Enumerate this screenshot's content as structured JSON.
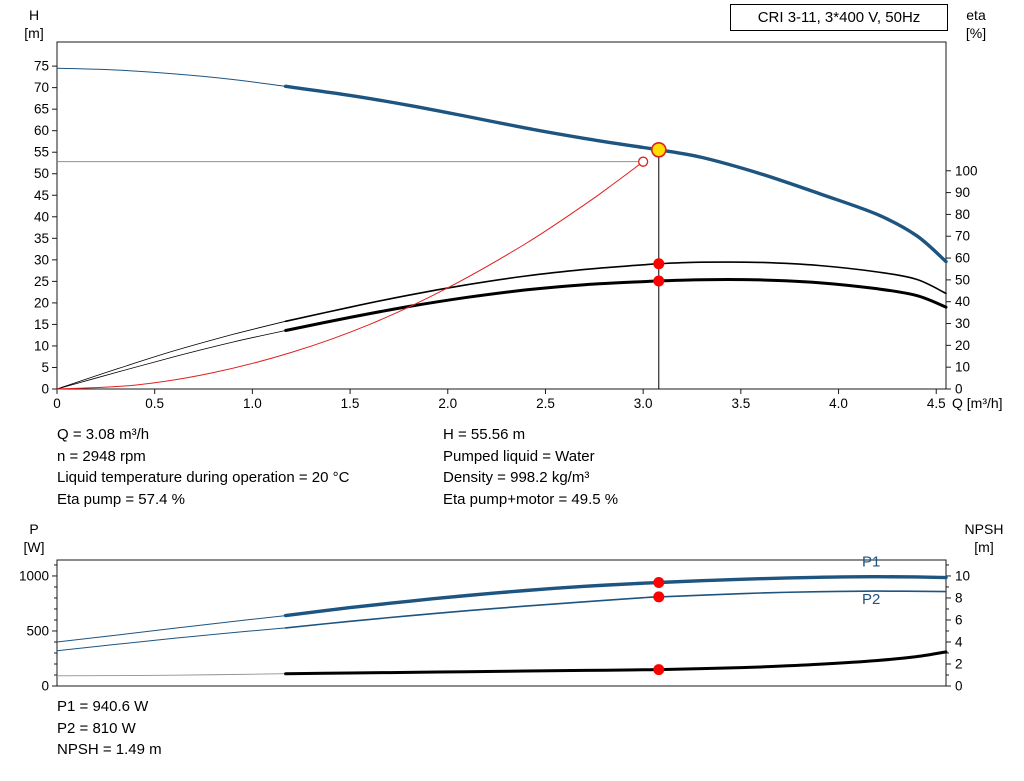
{
  "title_box": {
    "label": "CRI 3-11, 3*400 V, 50Hz"
  },
  "colors": {
    "curve_blue": "#1d5480",
    "curve_black": "#000000",
    "curve_red": "#e02020",
    "dot_red": "#ff0000",
    "duty_yellow": "#ffdf00",
    "reference_gray": "#909090"
  },
  "top_chart": {
    "y_left_title": [
      "H",
      "[m]"
    ],
    "y_right_title": [
      "eta",
      "[%]"
    ],
    "x_title": "Q [m³/h]"
  },
  "bottom_chart": {
    "y_left_title": [
      "P",
      "[W]"
    ],
    "y_right_title": [
      "NPSH",
      "[m]"
    ]
  },
  "info_top_left": [
    "Q = 3.08 m³/h",
    "n = 2948 rpm",
    "Liquid temperature during operation = 20 °C",
    "Eta pump = 57.4 %"
  ],
  "info_top_right": [
    "H = 55.56 m",
    "Pumped liquid = Water",
    "Density = 998.2 kg/m³",
    "Eta pump+motor = 49.5 %"
  ],
  "info_bottom": [
    "P1 = 940.6 W",
    "P2 = 810 W",
    "NPSH = 1.49 m"
  ],
  "chart_data": [
    {
      "id": "qh-eta",
      "type": "line",
      "title": "CRI 3-11, 3*400 V, 50Hz",
      "xlabel": "Q [m³/h]",
      "ylabel_left": "H [m]",
      "ylabel_right": "eta [%]",
      "x": {
        "min": 0,
        "max": 4.55,
        "ticks": [
          [
            0,
            "0"
          ],
          [
            0.5,
            "0.5"
          ],
          [
            1,
            "1.0"
          ],
          [
            1.5,
            "1.5"
          ],
          [
            2,
            "2.0"
          ],
          [
            2.5,
            "2.5"
          ],
          [
            3,
            "3.0"
          ],
          [
            3.5,
            "3.5"
          ],
          [
            4,
            "4.0"
          ],
          [
            4.5,
            "4.5"
          ]
        ]
      },
      "y_left": {
        "min": 0,
        "max": 80.6,
        "ticks": [
          [
            0,
            "0"
          ],
          [
            5,
            "5"
          ],
          [
            10,
            "10"
          ],
          [
            15,
            "15"
          ],
          [
            20,
            "20"
          ],
          [
            25,
            "25"
          ],
          [
            30,
            "30"
          ],
          [
            35,
            "35"
          ],
          [
            40,
            "40"
          ],
          [
            45,
            "45"
          ],
          [
            50,
            "50"
          ],
          [
            55,
            "55"
          ],
          [
            60,
            "60"
          ],
          [
            65,
            "65"
          ],
          [
            70,
            "70"
          ],
          [
            75,
            "75"
          ]
        ]
      },
      "y_right": {
        "min": 0,
        "max": 159,
        "ticks": [
          [
            0,
            "0"
          ],
          [
            10,
            "10"
          ],
          [
            20,
            "20"
          ],
          [
            30,
            "30"
          ],
          [
            40,
            "40"
          ],
          [
            50,
            "50"
          ],
          [
            60,
            "60"
          ],
          [
            70,
            "70"
          ],
          [
            80,
            "80"
          ],
          [
            90,
            "90"
          ],
          [
            100,
            "100"
          ]
        ]
      },
      "series": [
        {
          "name": "head",
          "axis": "left",
          "color": "#1d5480",
          "thin": 1,
          "thick": 3.4,
          "bold_from": 1.17,
          "points": [
            [
              0,
              74.5
            ],
            [
              0.3,
              74.1
            ],
            [
              0.6,
              73.2
            ],
            [
              0.9,
              71.9
            ],
            [
              1.17,
              70.3
            ],
            [
              1.5,
              68.2
            ],
            [
              1.8,
              65.9
            ],
            [
              2.1,
              63.3
            ],
            [
              2.4,
              60.6
            ],
            [
              2.7,
              58.2
            ],
            [
              3.0,
              56.1
            ],
            [
              3.08,
              55.56
            ],
            [
              3.3,
              53.8
            ],
            [
              3.6,
              50.0
            ],
            [
              3.9,
              45.4
            ],
            [
              4.2,
              40.5
            ],
            [
              4.4,
              35.6
            ],
            [
              4.55,
              29.6
            ]
          ]
        },
        {
          "name": "eta-pump",
          "axis": "right",
          "color": "#000000",
          "thin": 0.8,
          "thick": 1.6,
          "bold_from": 1.17,
          "points": [
            [
              0,
              0
            ],
            [
              0.3,
              9
            ],
            [
              0.6,
              17.5
            ],
            [
              0.9,
              25
            ],
            [
              1.17,
              31
            ],
            [
              1.5,
              37.5
            ],
            [
              1.8,
              43
            ],
            [
              2.1,
              47.8
            ],
            [
              2.4,
              51.8
            ],
            [
              2.7,
              54.8
            ],
            [
              3.0,
              56.9
            ],
            [
              3.08,
              57.4
            ],
            [
              3.3,
              58.1
            ],
            [
              3.6,
              58.0
            ],
            [
              3.9,
              56.6
            ],
            [
              4.2,
              53.6
            ],
            [
              4.4,
              50.2
            ],
            [
              4.55,
              43.8
            ]
          ]
        },
        {
          "name": "eta-pump-motor",
          "axis": "right",
          "color": "#000000",
          "thin": 0.8,
          "thick": 3,
          "bold_from": 1.17,
          "points": [
            [
              0,
              0
            ],
            [
              0.3,
              7.5
            ],
            [
              0.6,
              14.8
            ],
            [
              0.9,
              21.5
            ],
            [
              1.17,
              26.8
            ],
            [
              1.5,
              32.8
            ],
            [
              1.8,
              37.8
            ],
            [
              2.1,
              42.0
            ],
            [
              2.4,
              45.4
            ],
            [
              2.7,
              47.8
            ],
            [
              3.0,
              49.2
            ],
            [
              3.08,
              49.5
            ],
            [
              3.3,
              50.1
            ],
            [
              3.6,
              50.0
            ],
            [
              3.9,
              48.7
            ],
            [
              4.2,
              45.9
            ],
            [
              4.4,
              42.8
            ],
            [
              4.55,
              37.5
            ]
          ]
        },
        {
          "name": "system-curve",
          "axis": "left",
          "color": "#e02020",
          "thin": 1,
          "points": [
            [
              0,
              0
            ],
            [
              0.4,
              0.9
            ],
            [
              0.8,
              3.8
            ],
            [
              1.2,
              8.5
            ],
            [
              1.6,
              15.0
            ],
            [
              2.0,
              23.5
            ],
            [
              2.4,
              33.8
            ],
            [
              2.7,
              42.8
            ],
            [
              2.85,
              47.7
            ],
            [
              3.0,
              52.8
            ]
          ]
        }
      ],
      "reference_lines": [
        {
          "type": "h",
          "axis": "left",
          "value": 52.8,
          "x_from": 0,
          "x_to": 3.0,
          "color": "#909090"
        },
        {
          "type": "v",
          "axis": "left",
          "x": 3.08,
          "y_from": 0,
          "y_to": 55.56,
          "color": "#000000"
        }
      ],
      "markers": [
        {
          "kind": "open",
          "x": 3.0,
          "axis": "left",
          "value": 52.8,
          "stroke": "#e02020"
        },
        {
          "kind": "duty",
          "x": 3.08,
          "axis": "left",
          "value": 55.56,
          "fill": "#ffdf00",
          "stroke": "#e02020"
        },
        {
          "kind": "dot",
          "x": 3.08,
          "axis": "right",
          "value": 57.4,
          "color": "#ff0000"
        },
        {
          "kind": "dot",
          "x": 3.08,
          "axis": "right",
          "value": 49.5,
          "color": "#ff0000"
        }
      ]
    },
    {
      "id": "power-npsh",
      "type": "line",
      "ylabel_left": "P [W]",
      "ylabel_right": "NPSH [m]",
      "x": {
        "min": 0,
        "max": 4.55,
        "ticks": []
      },
      "y_left": {
        "min": 0,
        "max": 1145,
        "ticks": [
          [
            0,
            "0"
          ],
          [
            100,
            ""
          ],
          [
            200,
            ""
          ],
          [
            300,
            ""
          ],
          [
            400,
            ""
          ],
          [
            500,
            "500"
          ],
          [
            600,
            ""
          ],
          [
            700,
            ""
          ],
          [
            800,
            ""
          ],
          [
            900,
            ""
          ],
          [
            1000,
            "1000"
          ],
          [
            1100,
            ""
          ]
        ]
      },
      "y_right": {
        "min": 0,
        "max": 11.45,
        "ticks": [
          [
            0,
            "0"
          ],
          [
            1,
            ""
          ],
          [
            2,
            "2"
          ],
          [
            3,
            ""
          ],
          [
            4,
            "4"
          ],
          [
            5,
            ""
          ],
          [
            6,
            "6"
          ],
          [
            7,
            ""
          ],
          [
            8,
            "8"
          ],
          [
            9,
            ""
          ],
          [
            10,
            "10"
          ],
          [
            11,
            ""
          ]
        ]
      },
      "series": [
        {
          "name": "P1",
          "axis": "left",
          "color": "#1d5480",
          "thin": 1,
          "thick": 3.4,
          "bold_from": 1.17,
          "points": [
            [
              0,
              400
            ],
            [
              0.3,
              462
            ],
            [
              0.6,
              525
            ],
            [
              0.9,
              586
            ],
            [
              1.17,
              640
            ],
            [
              1.5,
              712
            ],
            [
              1.8,
              770
            ],
            [
              2.1,
              822
            ],
            [
              2.4,
              868
            ],
            [
              2.7,
              906
            ],
            [
              3.0,
              934
            ],
            [
              3.08,
              940.6
            ],
            [
              3.3,
              957
            ],
            [
              3.6,
              975
            ],
            [
              3.9,
              988
            ],
            [
              4.2,
              993
            ],
            [
              4.4,
              991
            ],
            [
              4.55,
              985
            ]
          ]
        },
        {
          "name": "P2",
          "axis": "left",
          "color": "#1d5480",
          "thin": 1,
          "thick": 1.6,
          "bold_from": 1.17,
          "points": [
            [
              0,
              320
            ],
            [
              0.3,
              378
            ],
            [
              0.6,
              434
            ],
            [
              0.9,
              485
            ],
            [
              1.17,
              528
            ],
            [
              1.5,
              588
            ],
            [
              1.8,
              638
            ],
            [
              2.1,
              684
            ],
            [
              2.4,
              726
            ],
            [
              2.7,
              765
            ],
            [
              3.0,
              802
            ],
            [
              3.08,
              810
            ],
            [
              3.3,
              825
            ],
            [
              3.6,
              845
            ],
            [
              3.9,
              857
            ],
            [
              4.2,
              862
            ],
            [
              4.55,
              858
            ]
          ]
        },
        {
          "name": "NPSH",
          "axis": "right",
          "color": "#000000",
          "thin": 0.9,
          "thick": 3,
          "bold_from": 1.17,
          "thin_color": "#909090",
          "points": [
            [
              0,
              0.93
            ],
            [
              0.6,
              0.98
            ],
            [
              1.17,
              1.12
            ],
            [
              1.5,
              1.18
            ],
            [
              1.8,
              1.24
            ],
            [
              2.1,
              1.3
            ],
            [
              2.4,
              1.36
            ],
            [
              2.7,
              1.42
            ],
            [
              3.0,
              1.47
            ],
            [
              3.08,
              1.49
            ],
            [
              3.3,
              1.58
            ],
            [
              3.6,
              1.73
            ],
            [
              3.9,
              1.97
            ],
            [
              4.2,
              2.32
            ],
            [
              4.4,
              2.67
            ],
            [
              4.55,
              3.1
            ]
          ]
        }
      ],
      "markers": [
        {
          "kind": "dot",
          "x": 3.08,
          "axis": "left",
          "value": 940.6,
          "color": "#ff0000"
        },
        {
          "kind": "dot",
          "x": 3.08,
          "axis": "left",
          "value": 810,
          "color": "#ff0000"
        },
        {
          "kind": "dot",
          "x": 3.08,
          "axis": "right",
          "value": 1.49,
          "color": "#ff0000"
        }
      ],
      "curve_labels": [
        {
          "text": "P1",
          "x": 4.12,
          "axis": "left",
          "value": 1085,
          "color": "#1d5480"
        },
        {
          "text": "P2",
          "x": 4.12,
          "axis": "left",
          "value": 745,
          "color": "#1d5480"
        }
      ]
    }
  ]
}
